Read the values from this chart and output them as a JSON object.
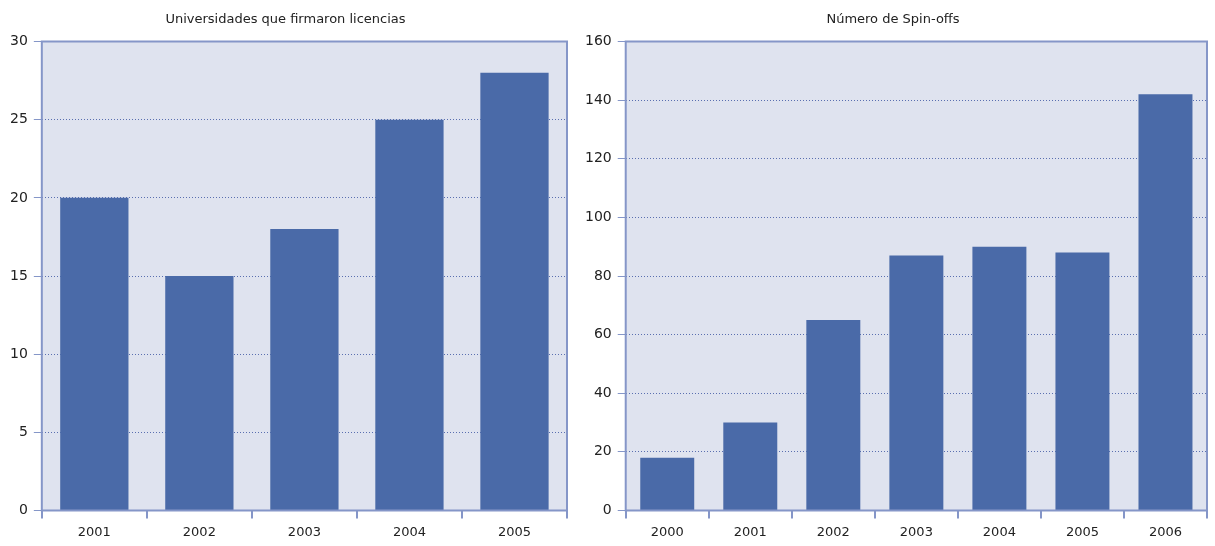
{
  "chart_data": [
    {
      "type": "bar",
      "title": "Universidades que firmaron licencias",
      "categories": [
        "2001",
        "2002",
        "2003",
        "2004",
        "2005"
      ],
      "values": [
        20,
        15,
        18,
        25,
        28
      ],
      "color": "#4a6aa8",
      "ylim": [
        0,
        30
      ],
      "yticks": [
        0,
        5,
        10,
        15,
        20,
        25,
        30
      ],
      "grid": "y",
      "legend": false
    },
    {
      "type": "bar",
      "title": "Número de Spin-offs",
      "categories": [
        "2000",
        "2001",
        "2002",
        "2003",
        "2004",
        "2005",
        "2006"
      ],
      "values": [
        18,
        30,
        65,
        87,
        90,
        88,
        142
      ],
      "color": "#4a6aa8",
      "ylim": [
        0,
        160
      ],
      "yticks": [
        0,
        20,
        40,
        60,
        80,
        100,
        120,
        140,
        160
      ],
      "grid": "y",
      "legend": false
    }
  ]
}
